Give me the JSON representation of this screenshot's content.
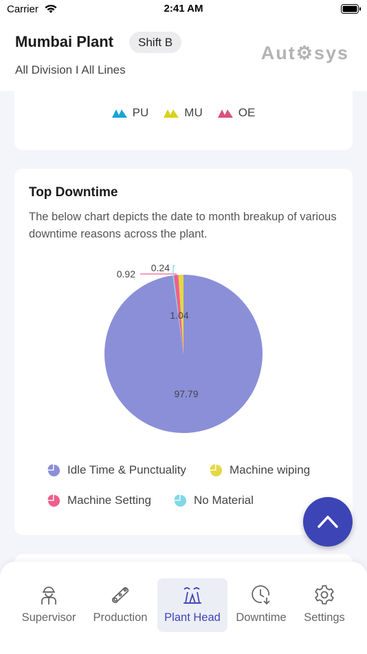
{
  "status_bar": {
    "carrier": "Carrier",
    "time": "2:41 AM"
  },
  "header": {
    "plant_name": "Mumbai Plant",
    "shift": "Shift B",
    "division": "All Division I All Lines",
    "logo": "Aut⚙sys"
  },
  "top_card": {
    "legend": [
      {
        "label": "PU",
        "color": "#1aa3d9"
      },
      {
        "label": "MU",
        "color": "#d9d11a"
      },
      {
        "label": "OE",
        "color": "#d9537a"
      }
    ]
  },
  "downtime_card": {
    "title": "Top Downtime",
    "description": "The below chart depicts the date to month breakup of various downtime reasons across the plant.",
    "legend": [
      {
        "label": "Idle Time & Punctuality",
        "color": "#8b8fd8"
      },
      {
        "label": "Machine wiping",
        "color": "#e3d844"
      },
      {
        "label": "Machine Setting",
        "color": "#ef5f8c"
      },
      {
        "label": "No Material",
        "color": "#7fd8e8"
      }
    ]
  },
  "chart_data": {
    "type": "pie",
    "title": "",
    "slices": [
      {
        "label": "Idle Time & Punctuality",
        "value": 97.79,
        "display": "97.79",
        "color": "#8b8fd8"
      },
      {
        "label": "Machine wiping",
        "value": 1.04,
        "display": "1.04",
        "color": "#e3d844"
      },
      {
        "label": "Machine Setting",
        "value": 0.92,
        "display": "0.92",
        "color": "#ef5f8c"
      },
      {
        "label": "No Material",
        "value": 0.24,
        "display": "0.24",
        "color": "#7fd8e8"
      }
    ]
  },
  "tabs": [
    {
      "label": "Supervisor",
      "icon": "worker-icon",
      "active": false
    },
    {
      "label": "Production",
      "icon": "production-icon",
      "active": false
    },
    {
      "label": "Plant Head",
      "icon": "plant-head-icon",
      "active": true
    },
    {
      "label": "Downtime",
      "icon": "clock-down-icon",
      "active": false
    },
    {
      "label": "Settings",
      "icon": "gear-icon",
      "active": false
    }
  ],
  "colors": {
    "accent": "#3d44b5",
    "fab": "#3d44b5"
  }
}
